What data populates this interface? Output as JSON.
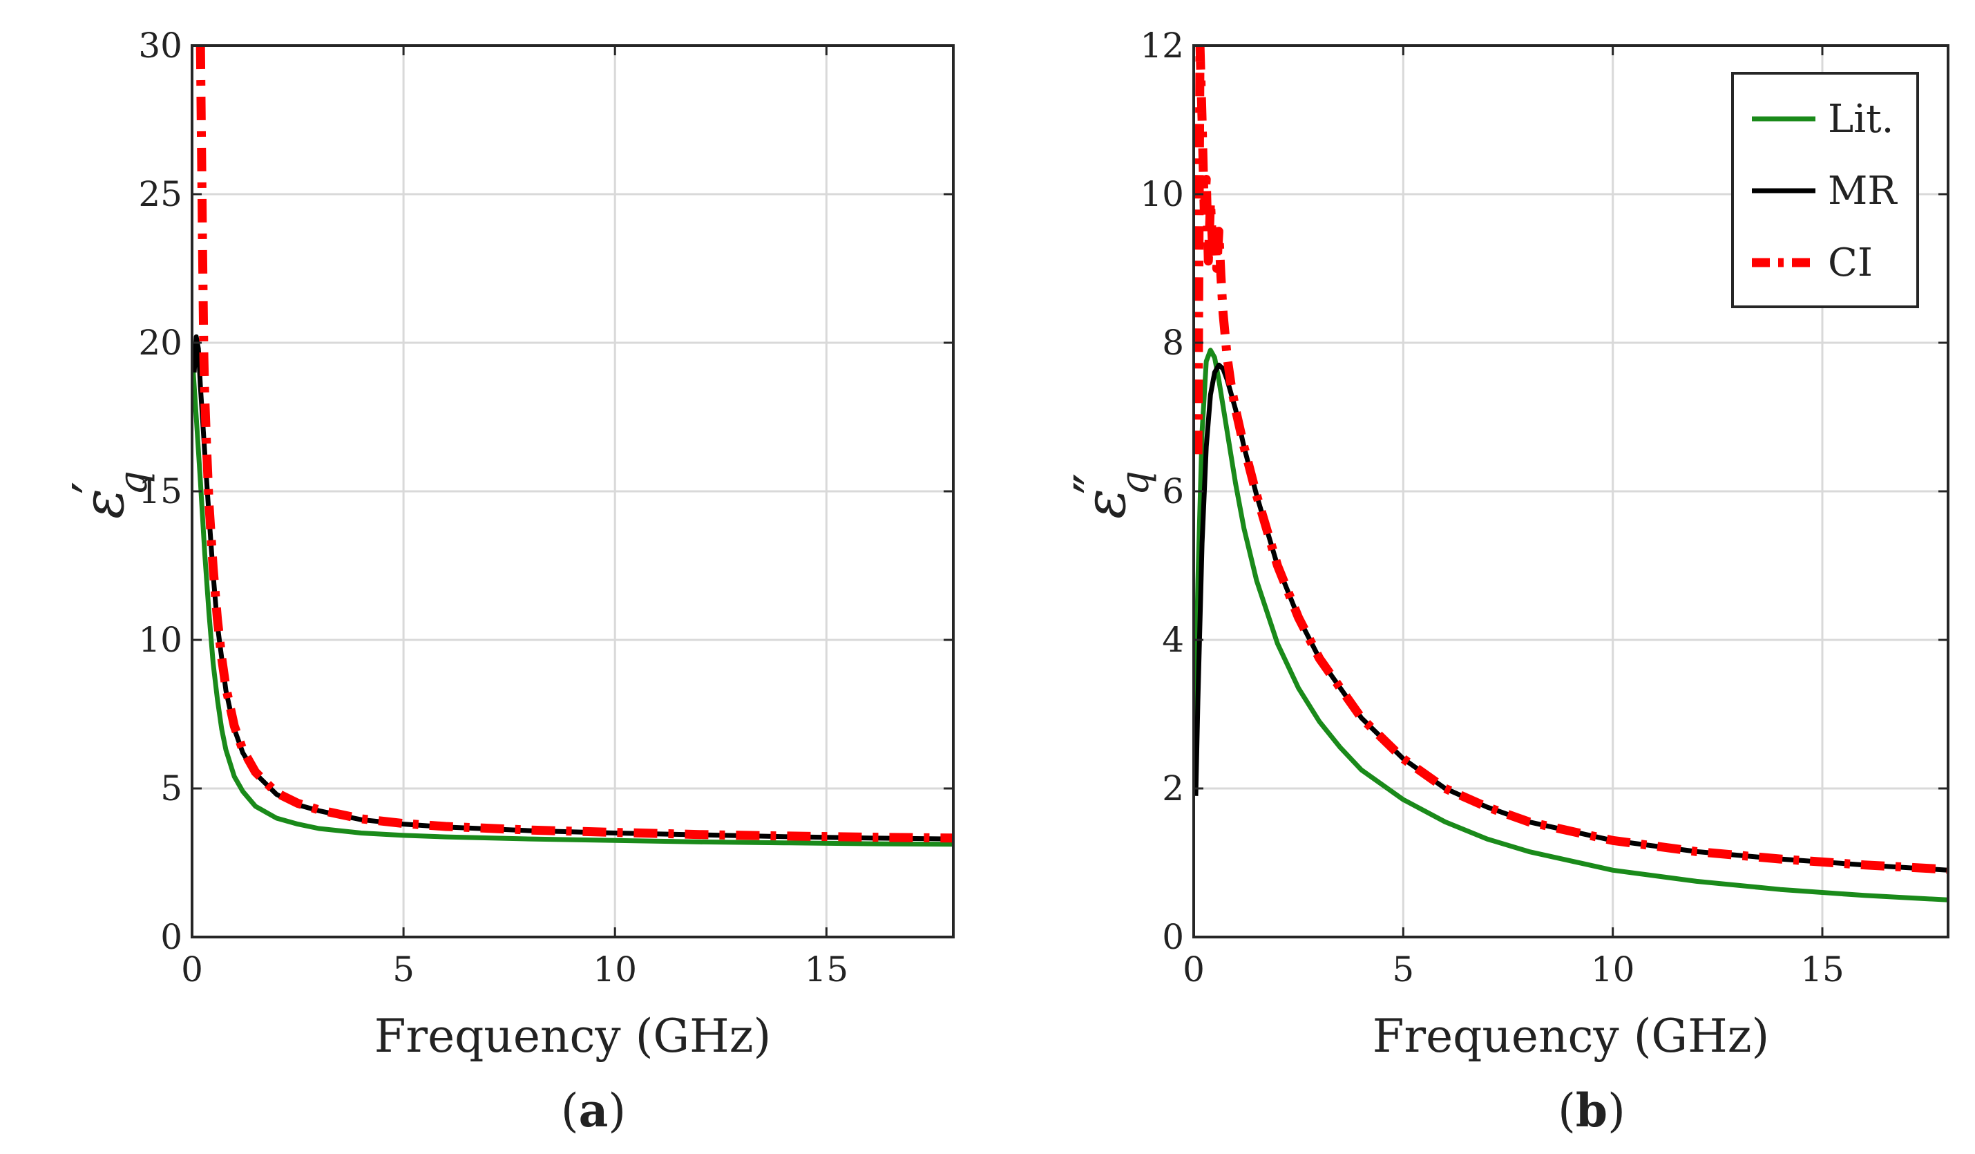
{
  "chart_data": [
    {
      "type": "line",
      "panel_label": "(a)",
      "panel_letter": "a",
      "xlabel": "Frequency (GHz)",
      "ylabel": {
        "symbol": "ε",
        "subscript": "q",
        "prime": "′"
      },
      "xlim": [
        0,
        18
      ],
      "ylim": [
        0,
        30
      ],
      "xticks": [
        0,
        5,
        10,
        15
      ],
      "yticks": [
        0,
        5,
        10,
        15,
        20,
        25,
        30
      ],
      "grid": true,
      "series": [
        {
          "name": "Lit.",
          "color": "#1a8a1a",
          "style": "solid",
          "x": [
            0.02,
            0.1,
            0.2,
            0.3,
            0.4,
            0.5,
            0.6,
            0.7,
            0.8,
            1.0,
            1.2,
            1.5,
            2.0,
            2.5,
            3,
            4,
            5,
            6,
            8,
            10,
            12,
            14,
            16,
            18
          ],
          "y": [
            19.2,
            17.5,
            15.3,
            12.9,
            10.9,
            9.2,
            8.0,
            7.0,
            6.3,
            5.4,
            4.9,
            4.4,
            4.0,
            3.8,
            3.65,
            3.5,
            3.42,
            3.37,
            3.3,
            3.25,
            3.2,
            3.17,
            3.14,
            3.12
          ]
        },
        {
          "name": "MR",
          "color": "#000000",
          "style": "solid",
          "x": [
            0.05,
            0.1,
            0.15,
            0.2,
            0.3,
            0.4,
            0.5,
            0.6,
            0.8,
            1.0,
            1.2,
            1.5,
            2.0,
            2.5,
            3,
            4,
            5,
            6,
            8,
            10,
            12,
            14,
            16,
            18
          ],
          "y": [
            19.0,
            20.2,
            19.8,
            18.5,
            16.3,
            14.2,
            12.2,
            10.5,
            8.3,
            7.0,
            6.2,
            5.5,
            4.8,
            4.45,
            4.25,
            3.95,
            3.8,
            3.7,
            3.58,
            3.5,
            3.44,
            3.38,
            3.33,
            3.3
          ]
        },
        {
          "name": "CI",
          "color": "#ff0000",
          "style": "dashdot",
          "x": [
            0.2,
            0.22,
            0.25,
            0.28,
            0.3,
            0.35,
            0.4,
            0.5,
            0.6,
            0.7,
            0.8,
            1.0,
            1.2,
            1.5,
            2.0,
            2.5,
            3,
            4,
            5,
            6,
            8,
            10,
            12,
            14,
            16,
            18
          ],
          "y": [
            30,
            27,
            23,
            19.5,
            18.2,
            16.3,
            14.6,
            12.4,
            10.7,
            9.4,
            8.4,
            7.1,
            6.3,
            5.55,
            4.85,
            4.5,
            4.28,
            3.98,
            3.82,
            3.72,
            3.6,
            3.52,
            3.45,
            3.4,
            3.36,
            3.33
          ]
        }
      ]
    },
    {
      "type": "line",
      "panel_label": "(b)",
      "panel_letter": "b",
      "xlabel": "Frequency (GHz)",
      "ylabel": {
        "symbol": "ε",
        "subscript": "q",
        "prime": "″"
      },
      "xlim": [
        0,
        18
      ],
      "ylim": [
        0,
        12
      ],
      "xticks": [
        0,
        5,
        10,
        15
      ],
      "yticks": [
        0,
        2,
        4,
        6,
        8,
        10,
        12
      ],
      "grid": true,
      "legend": {
        "position": "top-right",
        "entries": [
          "Lit.",
          "MR",
          "CI"
        ]
      },
      "series": [
        {
          "name": "Lit.",
          "color": "#1a8a1a",
          "style": "solid",
          "x": [
            0.02,
            0.1,
            0.2,
            0.3,
            0.4,
            0.5,
            0.6,
            0.8,
            1.0,
            1.2,
            1.5,
            2.0,
            2.5,
            3,
            3.5,
            4,
            5,
            6,
            7,
            8,
            10,
            12,
            14,
            16,
            18
          ],
          "y": [
            2.5,
            4.8,
            6.8,
            7.75,
            7.9,
            7.8,
            7.5,
            6.8,
            6.1,
            5.5,
            4.8,
            3.95,
            3.35,
            2.9,
            2.55,
            2.25,
            1.85,
            1.55,
            1.32,
            1.15,
            0.9,
            0.75,
            0.64,
            0.56,
            0.5
          ]
        },
        {
          "name": "MR",
          "color": "#000000",
          "style": "solid",
          "x": [
            0.05,
            0.1,
            0.2,
            0.3,
            0.4,
            0.5,
            0.6,
            0.7,
            0.8,
            1.0,
            1.2,
            1.5,
            2.0,
            2.5,
            3,
            4,
            5,
            6,
            7,
            8,
            10,
            12,
            14,
            16,
            18
          ],
          "y": [
            1.9,
            3.2,
            5.3,
            6.6,
            7.3,
            7.6,
            7.7,
            7.65,
            7.5,
            7.1,
            6.6,
            5.95,
            5.0,
            4.3,
            3.75,
            2.95,
            2.4,
            2.0,
            1.75,
            1.55,
            1.3,
            1.15,
            1.05,
            0.97,
            0.9
          ]
        },
        {
          "name": "CI",
          "color": "#ff0000",
          "style": "dashdot",
          "x": [
            0.1,
            0.15,
            0.2,
            0.25,
            0.3,
            0.35,
            0.4,
            0.45,
            0.5,
            0.55,
            0.6,
            0.65,
            0.7,
            0.8,
            0.9,
            1.0,
            1.2,
            1.5,
            2.0,
            2.5,
            3,
            4,
            5,
            6,
            7,
            8,
            10,
            12,
            14,
            16,
            18
          ],
          "y": [
            6.5,
            12.0,
            11.0,
            9.8,
            10.2,
            9.1,
            9.9,
            9.3,
            9.6,
            9.0,
            9.5,
            8.9,
            8.4,
            7.8,
            7.4,
            7.1,
            6.6,
            5.95,
            5.0,
            4.3,
            3.75,
            2.95,
            2.4,
            2.0,
            1.75,
            1.55,
            1.3,
            1.15,
            1.05,
            0.97,
            0.91
          ]
        }
      ]
    }
  ]
}
